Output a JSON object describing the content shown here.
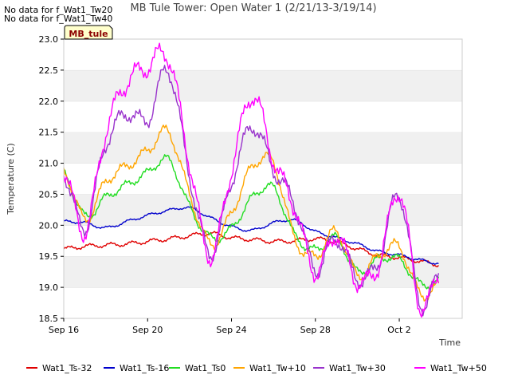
{
  "notices": [
    "No data for f_Wat1_Tw20",
    "No data for f_Wat1_Tw40"
  ],
  "badge": "MB_tule",
  "chart_data": {
    "type": "line",
    "title": "MB Tule Tower: Open Water 1 (2/21/13-3/19/14)",
    "xlabel": "Time",
    "ylabel": "Temperature (C)",
    "xlim": [
      "2013-09-16",
      "2013-10-05"
    ],
    "ylim": [
      18.5,
      23.0
    ],
    "x_ticks": [
      "Sep 16",
      "Sep 20",
      "Sep 24",
      "Sep 28",
      "Oct 2"
    ],
    "y_ticks": [
      "18.5",
      "19.0",
      "19.5",
      "20.0",
      "20.5",
      "21.0",
      "21.5",
      "22.0",
      "22.5",
      "23.0"
    ],
    "grid": "horizontal bands",
    "legend_position": "bottom",
    "x_dates": [
      "2013-09-16",
      "2013-09-17",
      "2013-09-18",
      "2013-09-19",
      "2013-09-20",
      "2013-09-21",
      "2013-09-22",
      "2013-09-23",
      "2013-09-24",
      "2013-09-25",
      "2013-09-26",
      "2013-09-27",
      "2013-09-28",
      "2013-09-29",
      "2013-09-30",
      "2013-10-01",
      "2013-10-02",
      "2013-10-03",
      "2013-10-04"
    ],
    "series": [
      {
        "name": "Wat1_Ts-32",
        "color": "#e00000",
        "values": [
          19.62,
          19.66,
          19.68,
          19.7,
          19.74,
          19.78,
          19.83,
          19.87,
          19.8,
          19.77,
          19.74,
          19.75,
          19.78,
          19.73,
          19.62,
          19.52,
          19.48,
          19.42,
          19.36
        ]
      },
      {
        "name": "Wat1_Ts-16",
        "color": "#0000cc",
        "values": [
          20.06,
          20.04,
          19.96,
          20.06,
          20.16,
          20.24,
          20.28,
          20.12,
          19.98,
          19.92,
          20.04,
          20.08,
          19.9,
          19.8,
          19.7,
          19.58,
          19.52,
          19.44,
          19.38
        ]
      },
      {
        "name": "Wat1_Ts0",
        "color": "#22dd22",
        "values": [
          20.85,
          20.15,
          20.45,
          20.65,
          20.85,
          21.05,
          20.3,
          19.8,
          19.95,
          20.45,
          20.6,
          19.85,
          19.6,
          19.8,
          19.25,
          19.45,
          19.45,
          19.05,
          19.1
        ]
      },
      {
        "name": "Wat1_Tw+10",
        "color": "#ffa500",
        "values": [
          20.9,
          20.1,
          20.7,
          20.95,
          21.2,
          21.5,
          20.5,
          19.7,
          20.2,
          20.95,
          21.0,
          19.8,
          19.5,
          19.9,
          19.2,
          19.5,
          19.65,
          18.9,
          19.05
        ]
      },
      {
        "name": "Wat1_Tw+30",
        "color": "#9933cc",
        "values": [
          20.85,
          19.95,
          21.3,
          21.8,
          21.7,
          22.5,
          20.8,
          19.55,
          20.7,
          21.6,
          20.9,
          20.35,
          19.3,
          19.8,
          19.15,
          19.4,
          20.5,
          18.75,
          19.25
        ]
      },
      {
        "name": "Wat1_Tw+50",
        "color": "#ff00ff",
        "values": [
          20.9,
          19.9,
          21.5,
          22.3,
          22.55,
          22.7,
          21.0,
          19.5,
          20.9,
          22.1,
          21.05,
          20.3,
          19.25,
          19.85,
          19.1,
          19.35,
          20.55,
          18.7,
          19.3
        ]
      }
    ]
  }
}
